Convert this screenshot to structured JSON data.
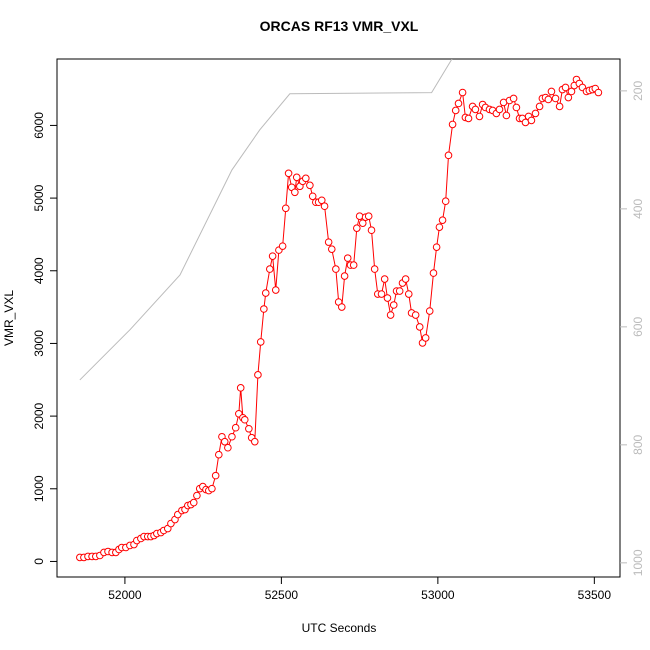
{
  "chart_data": {
    "type": "line",
    "title": "ORCAS RF13 VMR_VXL",
    "xlabel": "UTC Seconds",
    "ylabel": "VMR_VXL",
    "xlim": [
      51783,
      53582
    ],
    "xticks": [
      52000,
      52500,
      53000,
      53500
    ],
    "ylim": [
      -214,
      6914
    ],
    "yticks": [
      0,
      1000,
      2000,
      3000,
      4000,
      5000,
      6000
    ],
    "y2lim": [
      1024,
      146
    ],
    "y2ticks": [
      200,
      400,
      600,
      800,
      1000
    ],
    "series": [
      {
        "color": "#ff0000",
        "marker": "circle",
        "x": [
          51856,
          51869,
          51882,
          51895,
          51907,
          51920,
          51933,
          51946,
          51959,
          51971,
          51981,
          51990,
          52003,
          52016,
          52029,
          52038,
          52051,
          52061,
          52073,
          52083,
          52093,
          52102,
          52115,
          52124,
          52137,
          52147,
          52160,
          52169,
          52182,
          52192,
          52201,
          52211,
          52220,
          52230,
          52239,
          52249,
          52259,
          52268,
          52278,
          52290,
          52300,
          52310,
          52319,
          52329,
          52342,
          52354,
          52364,
          52370,
          52377,
          52383,
          52396,
          52405,
          52415,
          52425,
          52434,
          52444,
          52450,
          52463,
          52472,
          52482,
          52492,
          52504,
          52514,
          52523,
          52533,
          52543,
          52549,
          52559,
          52568,
          52578,
          52591,
          52600,
          52610,
          52619,
          52629,
          52638,
          52651,
          52661,
          52674,
          52683,
          52693,
          52702,
          52712,
          52721,
          52731,
          52741,
          52750,
          52760,
          52769,
          52779,
          52788,
          52798,
          52808,
          52820,
          52830,
          52839,
          52849,
          52859,
          52868,
          52878,
          52887,
          52897,
          52907,
          52916,
          52929,
          52942,
          52951,
          52961,
          52974,
          52986,
          52996,
          53005,
          53015,
          53025,
          53034,
          53047,
          53057,
          53066,
          53079,
          53088,
          53098,
          53111,
          53120,
          53133,
          53143,
          53152,
          53165,
          53175,
          53187,
          53197,
          53210,
          53219,
          53229,
          53242,
          53251,
          53261,
          53270,
          53280,
          53290,
          53299,
          53312,
          53325,
          53334,
          53344,
          53353,
          53363,
          53376,
          53389,
          53398,
          53408,
          53417,
          53427,
          53436,
          53443,
          53452,
          53462,
          53475,
          53484,
          53494,
          53503,
          53513
        ],
        "values": [
          55,
          55,
          69,
          69,
          69,
          82,
          124,
          137,
          124,
          124,
          165,
          192,
          192,
          220,
          233,
          288,
          316,
          343,
          343,
          343,
          357,
          384,
          398,
          426,
          453,
          522,
          577,
          645,
          700,
          714,
          769,
          783,
          810,
          906,
          1002,
          1030,
          989,
          975,
          1002,
          1181,
          1469,
          1716,
          1648,
          1565,
          1716,
          1840,
          2032,
          2389,
          1977,
          1950,
          1826,
          1703,
          1648,
          2568,
          3021,
          3474,
          3693,
          4023,
          4201,
          3735,
          4284,
          4339,
          4860,
          5341,
          5149,
          5080,
          5286,
          5162,
          5231,
          5272,
          5176,
          5025,
          4943,
          4943,
          4970,
          4888,
          4394,
          4297,
          4023,
          3570,
          3501,
          3927,
          4174,
          4078,
          4078,
          4586,
          4751,
          4655,
          4737,
          4751,
          4558,
          4023,
          3680,
          3680,
          3886,
          3625,
          3391,
          3529,
          3721,
          3721,
          3831,
          3886,
          3680,
          3419,
          3391,
          3227,
          3007,
          3076,
          3446,
          3968,
          4325,
          4600,
          4696,
          4957,
          5588,
          6014,
          6206,
          6302,
          6453,
          6110,
          6096,
          6261,
          6220,
          6124,
          6288,
          6247,
          6220,
          6206,
          6165,
          6220,
          6316,
          6137,
          6343,
          6371,
          6247,
          6096,
          6096,
          6041,
          6124,
          6069,
          6165,
          6261,
          6371,
          6384,
          6357,
          6467,
          6371,
          6261,
          6494,
          6522,
          6384,
          6467,
          6549,
          6632,
          6577,
          6522,
          6467,
          6481,
          6494,
          6508,
          6453
        ]
      },
      {
        "color": "#bbbbbb",
        "axis": "y2",
        "x": [
          51856,
          52016,
          52176,
          52342,
          52431,
          52527,
          52980,
          53045
        ],
        "values": [
          690,
          605,
          512,
          334,
          266,
          205,
          203,
          146
        ]
      }
    ]
  }
}
